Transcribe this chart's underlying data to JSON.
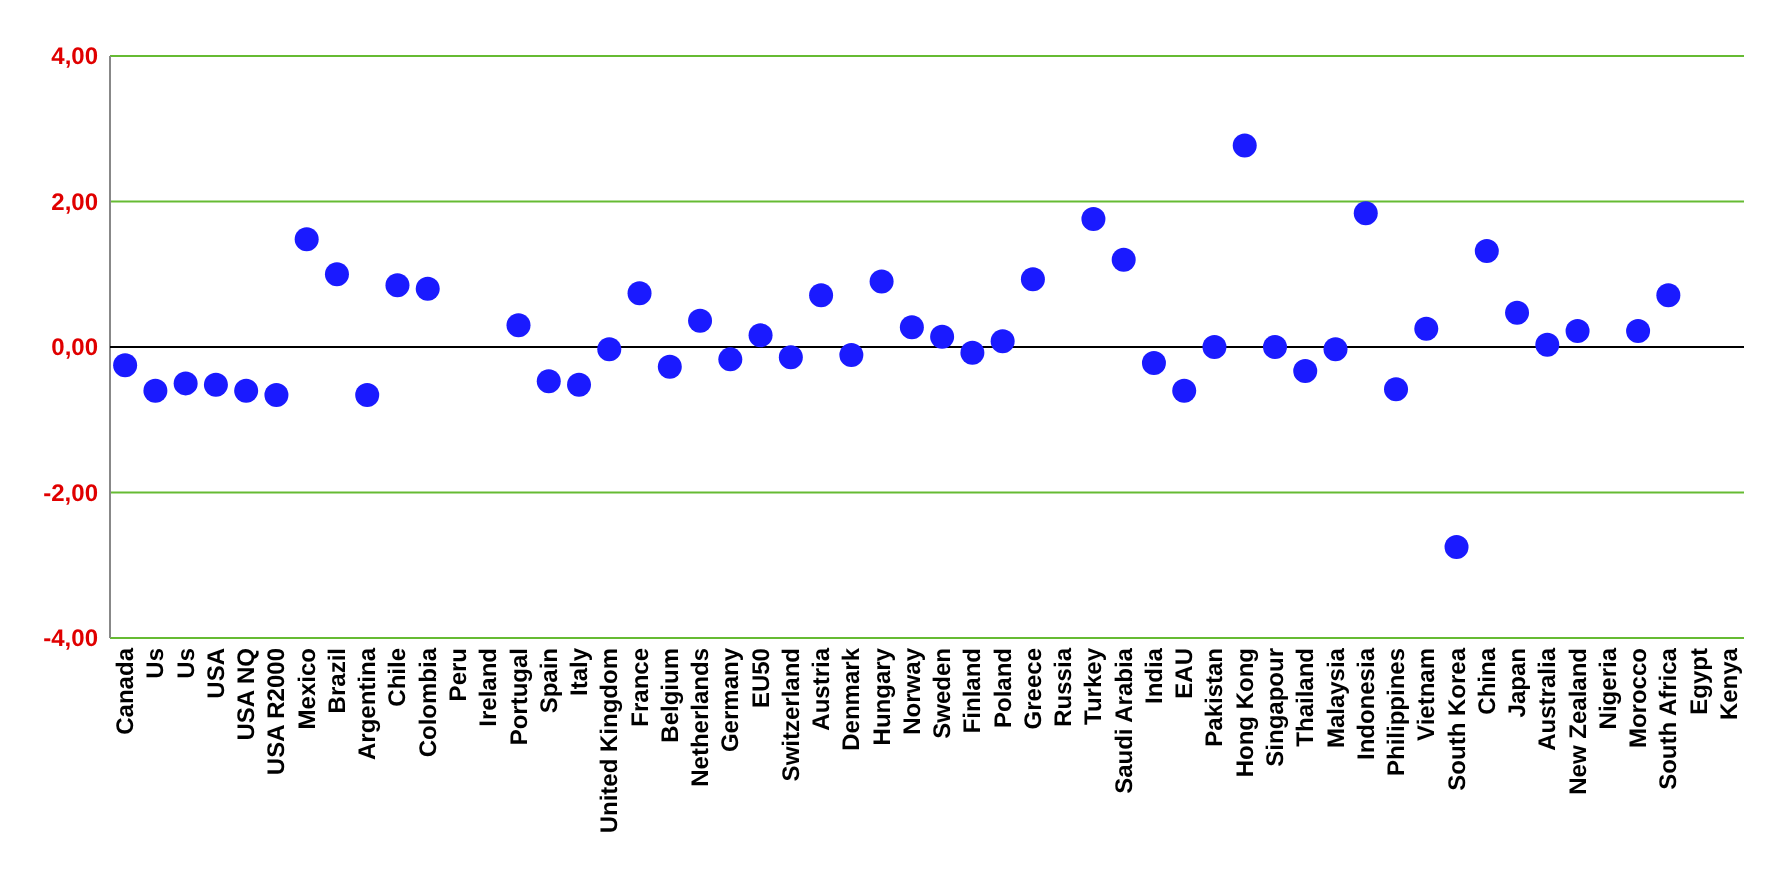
{
  "chart_data": {
    "type": "scatter",
    "categories": [
      "Canada",
      "Us",
      "Us",
      "USA",
      "USA NQ",
      "USA R2000",
      "Mexico",
      "Brazil",
      "Argentina",
      "Chile",
      "Colombia",
      "Peru",
      "Ireland",
      "Portugal",
      "Spain",
      "Italy",
      "United Kingdom",
      "France",
      "Belgium",
      "Netherlands",
      "Germany",
      "EU50",
      "Switzerland",
      "Austria",
      "Denmark",
      "Hungary",
      "Norway",
      "Sweden",
      "Finland",
      "Poland",
      "Greece",
      "Russia",
      "Turkey",
      "Saudi Arabia",
      "India",
      "EAU",
      "Pakistan",
      "Hong Kong",
      "Singapour",
      "Thailand",
      "Malaysia",
      "Indonesia",
      "Philippines",
      "Vietnam",
      "South Korea",
      "China",
      "Japan",
      "Australia",
      "New Zealand",
      "Nigeria",
      "Morocco",
      "South Africa",
      "Egypt",
      "Kenya"
    ],
    "series": [
      {
        "color": "#1a1aff",
        "values": [
          -0.25,
          -0.6,
          -0.5,
          -0.52,
          -0.6,
          -0.66,
          1.48,
          1.0,
          -0.66,
          0.85,
          0.8,
          null,
          null,
          0.3,
          -0.47,
          -0.52,
          -0.03,
          0.74,
          -0.27,
          0.36,
          -0.17,
          0.16,
          -0.14,
          0.71,
          -0.11,
          0.9,
          0.27,
          0.14,
          -0.08,
          0.08,
          0.93,
          null,
          1.76,
          1.2,
          -0.22,
          -0.6,
          0.0,
          2.77,
          0.0,
          -0.33,
          -0.03,
          1.84,
          -0.58,
          0.25,
          -2.75,
          1.32,
          0.47,
          0.03,
          0.22,
          null,
          0.22,
          0.71,
          null,
          null
        ]
      }
    ],
    "ylim": [
      -4,
      4
    ],
    "yticks": [
      {
        "value": -4,
        "label": "-4,00"
      },
      {
        "value": -2,
        "label": "-2,00"
      },
      {
        "value": 0,
        "label": "0,00"
      },
      {
        "value": 2,
        "label": "2,00"
      },
      {
        "value": 4,
        "label": "4,00"
      }
    ],
    "grid": "y",
    "marker": "circle",
    "ref_lines": [
      {
        "axis": "y",
        "value": 0,
        "color": "#000000"
      }
    ]
  }
}
